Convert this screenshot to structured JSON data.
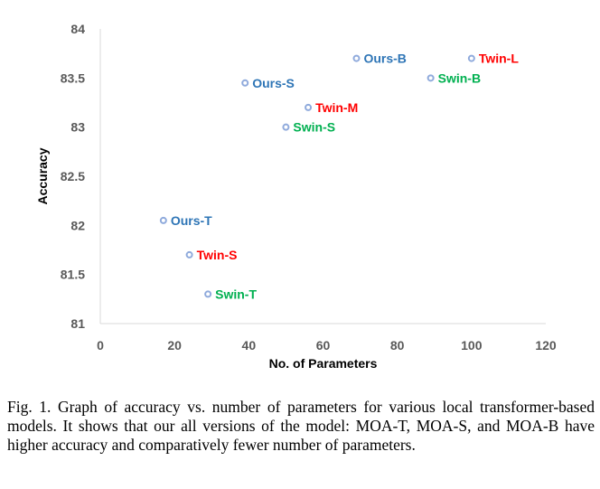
{
  "chart_data": {
    "type": "scatter",
    "title": "",
    "xlabel": "No. of Parameters",
    "ylabel": "Accuracy",
    "xlim": [
      0,
      120
    ],
    "ylim": [
      81,
      84
    ],
    "xticks": [
      "0",
      "20",
      "40",
      "60",
      "80",
      "100",
      "120"
    ],
    "yticks": [
      "81",
      "81.5",
      "82",
      "82.5",
      "83",
      "83.5",
      "84"
    ],
    "grid": false,
    "colors": {
      "ours": "#2e75b6",
      "twin": "#ff0000",
      "swin": "#00b050",
      "marker": "#8faadc"
    },
    "points": [
      {
        "label": "Ours-T",
        "x": 17,
        "y": 82.05,
        "group": "ours"
      },
      {
        "label": "Ours-S",
        "x": 39,
        "y": 83.45,
        "group": "ours"
      },
      {
        "label": "Ours-B",
        "x": 69,
        "y": 83.7,
        "group": "ours"
      },
      {
        "label": "Twin-S",
        "x": 24,
        "y": 81.7,
        "group": "twin"
      },
      {
        "label": "Twin-M",
        "x": 56,
        "y": 83.2,
        "group": "twin"
      },
      {
        "label": "Twin-L",
        "x": 100,
        "y": 83.7,
        "group": "twin"
      },
      {
        "label": "Swin-T",
        "x": 29,
        "y": 81.3,
        "group": "swin"
      },
      {
        "label": "Swin-S",
        "x": 50,
        "y": 83.0,
        "group": "swin"
      },
      {
        "label": "Swin-B",
        "x": 89,
        "y": 83.5,
        "group": "swin"
      }
    ]
  },
  "caption": "Fig. 1.   Graph of accuracy vs. number of parameters for various local transformer-based models. It shows that our all versions of the model: MOA-T, MOA-S, and MOA-B have higher accuracy and comparatively fewer number of parameters."
}
